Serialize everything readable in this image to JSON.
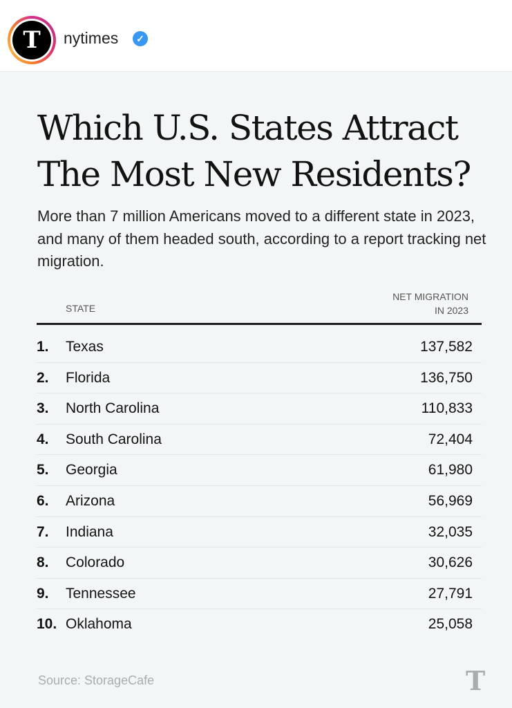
{
  "header": {
    "username": "nytimes",
    "verified": true,
    "avatar_letter": "T"
  },
  "post": {
    "title": "Which U.S. States Attract The Most New Residents?",
    "subtitle": "More than 7 million Americans moved to a different state in 2023, and many of them headed south, according to a report tracking net migration.",
    "table": {
      "col_state": "STATE",
      "col_value_line1": "NET MIGRATION",
      "col_value_line2": "IN 2023",
      "rows": [
        {
          "rank": "1.",
          "state": "Texas",
          "value": "137,582"
        },
        {
          "rank": "2.",
          "state": "Florida",
          "value": "136,750"
        },
        {
          "rank": "3.",
          "state": "North Carolina",
          "value": "110,833"
        },
        {
          "rank": "4.",
          "state": "South Carolina",
          "value": "72,404"
        },
        {
          "rank": "5.",
          "state": "Georgia",
          "value": "61,980"
        },
        {
          "rank": "6.",
          "state": "Arizona",
          "value": "56,969"
        },
        {
          "rank": "7.",
          "state": "Indiana",
          "value": "32,035"
        },
        {
          "rank": "8.",
          "state": "Colorado",
          "value": "30,626"
        },
        {
          "rank": "9.",
          "state": "Tennessee",
          "value": "27,791"
        },
        {
          "rank": "10.",
          "state": "Oklahoma",
          "value": "25,058"
        }
      ]
    },
    "source": "Source: StorageCafe",
    "logo_letter": "T"
  }
}
